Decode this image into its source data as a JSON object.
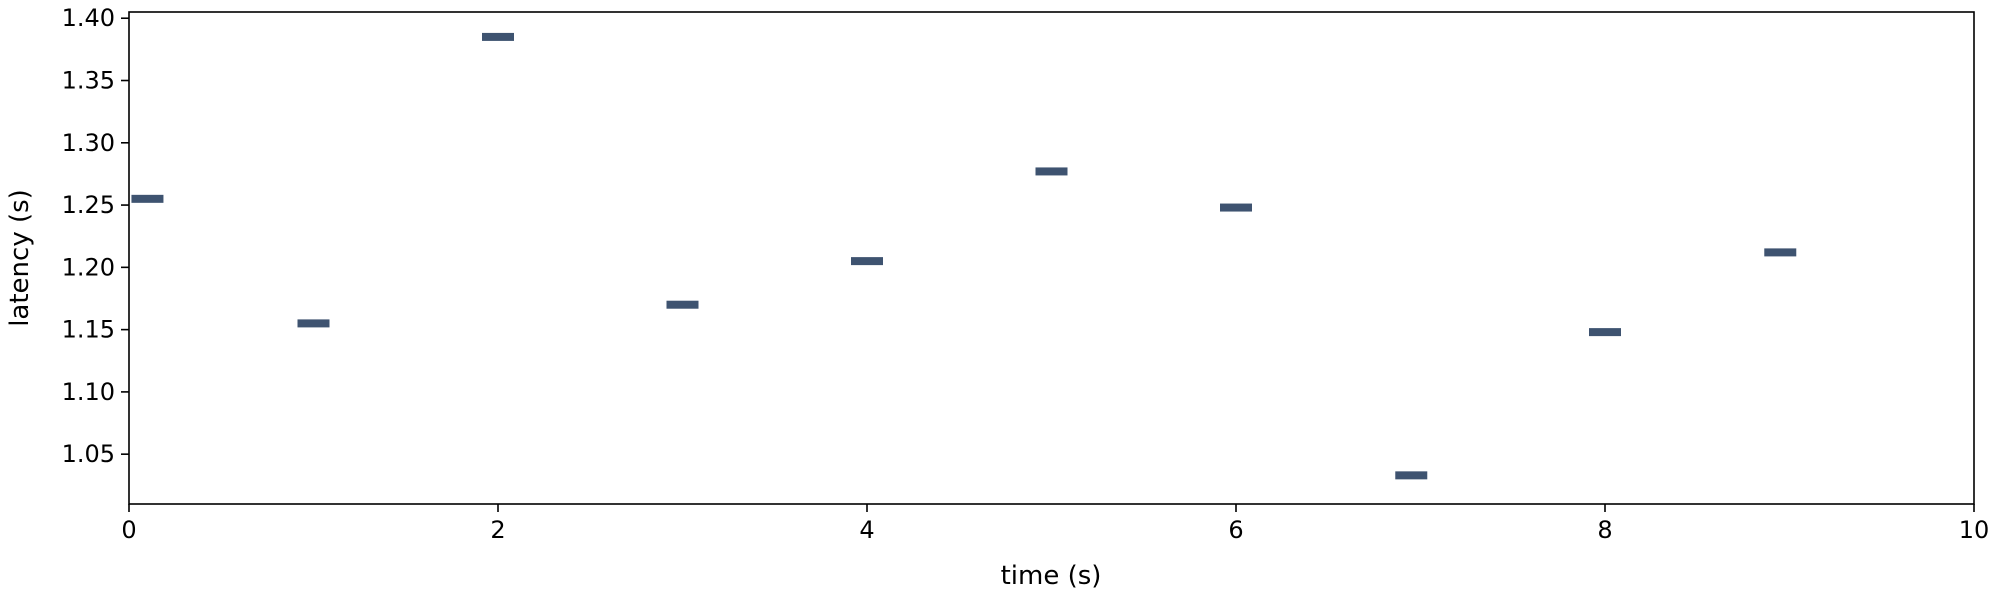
{
  "chart_data": {
    "type": "scatter",
    "marker": "horizontal-bar",
    "title": "",
    "xlabel": "time (s)",
    "ylabel": "latency (s)",
    "xlim": [
      0,
      10
    ],
    "ylim": [
      1.01,
      1.405
    ],
    "grid": false,
    "x_ticks": [
      "0",
      "2",
      "4",
      "6",
      "8",
      "10"
    ],
    "y_ticks": [
      "1.05",
      "1.10",
      "1.15",
      "1.20",
      "1.25",
      "1.30",
      "1.35",
      "1.40"
    ],
    "points": [
      {
        "x": 0.1,
        "y": 1.255
      },
      {
        "x": 1.0,
        "y": 1.155
      },
      {
        "x": 2.0,
        "y": 1.385
      },
      {
        "x": 3.0,
        "y": 1.17
      },
      {
        "x": 4.0,
        "y": 1.205
      },
      {
        "x": 5.0,
        "y": 1.277
      },
      {
        "x": 6.0,
        "y": 1.248
      },
      {
        "x": 6.95,
        "y": 1.033
      },
      {
        "x": 8.0,
        "y": 1.148
      },
      {
        "x": 8.95,
        "y": 1.212
      }
    ],
    "colors": {
      "marker": "#3e5370",
      "axis": "#000000"
    }
  }
}
